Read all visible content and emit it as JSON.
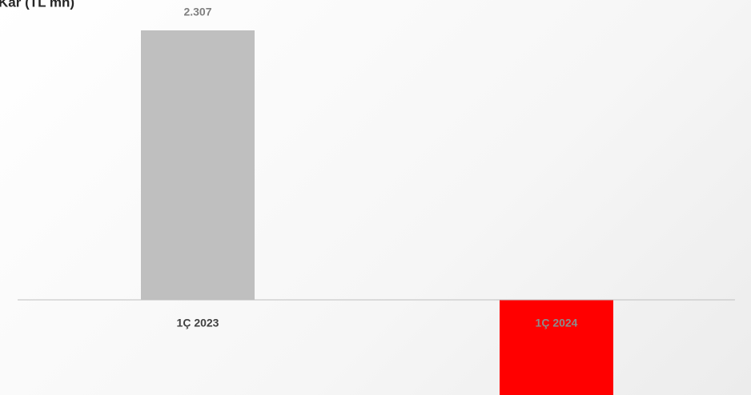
{
  "chart_data": {
    "type": "bar",
    "title": "Kar (TL mn)",
    "categories": [
      "1Ç 2023",
      "1Ç 2024"
    ],
    "values": [
      2307,
      -815
    ],
    "value_labels": [
      "2.307",
      null
    ],
    "colors": [
      "#bfbfbf",
      "#ff0000"
    ],
    "ylim": [
      -815,
      2567
    ]
  }
}
